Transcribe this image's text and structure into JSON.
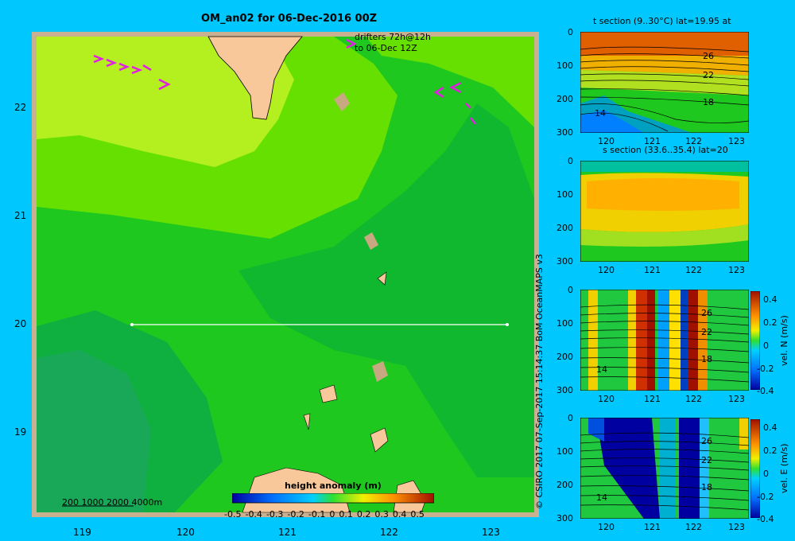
{
  "map": {
    "title": "OM_an02 for 06-Dec-2016 00Z",
    "drifters_line1": "drifters 72h@12h",
    "drifters_line2": "to 06-Dec 12Z",
    "lon_ticks": [
      "119",
      "120",
      "121",
      "122",
      "123"
    ],
    "lat_ticks": [
      "22",
      "21",
      "20",
      "19"
    ],
    "depth_legend": "200  1000  2000  4000m",
    "colorbar_title": "height anomaly  (m)",
    "colorbar_ticks": [
      "-0.5",
      "-0.4",
      "-0.3",
      "-0.2",
      "-0.1",
      "0",
      "0.1",
      "0.2",
      "0.3",
      "0.4",
      "0.5"
    ]
  },
  "credit": "© CSIRO 2017   07-Sep-2017 15:14:37 BoM OceanMAPS v3",
  "panels": {
    "t_title": "t section (9..30°C) lat=19.95  at",
    "s_title": "s section (33.6..35.4) lat=20",
    "n_label": "vel. N  (m/s)",
    "e_label": "vel. E  (m/s)",
    "depth_ticks": [
      "0",
      "100",
      "200",
      "300"
    ],
    "lon_ticks": [
      "120",
      "121",
      "122",
      "123"
    ],
    "contour_labels": [
      "26",
      "22",
      "18",
      "14"
    ],
    "vel_ticks": [
      "0.4",
      "0.2",
      "0",
      "-0.2",
      "-0.4"
    ]
  },
  "colors": {
    "background": "#00c8ff",
    "land": "#f9c89a",
    "shelf": "#c8a880",
    "drifter": "#e020e0"
  }
}
